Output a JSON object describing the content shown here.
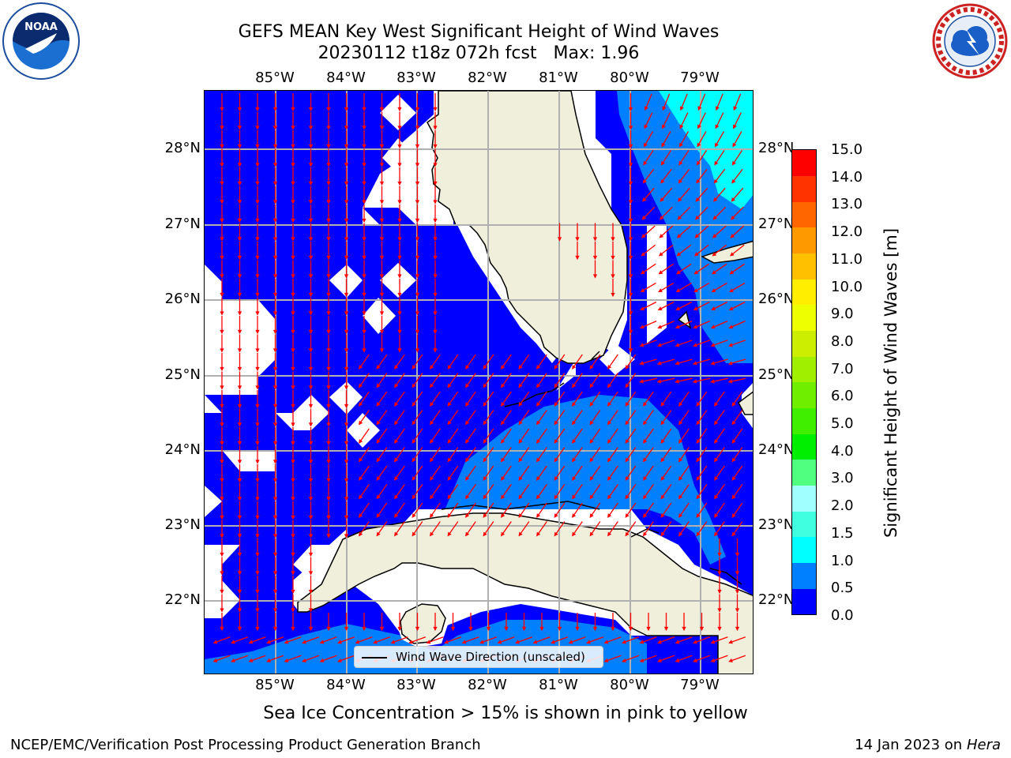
{
  "title_line1": "GEFS MEAN Key West Significant Height of Wind Waves",
  "title_run": "20230112 t18z 072h fcst",
  "title_max": "Max: 1.96",
  "lon_labels": [
    "85°W",
    "84°W",
    "83°W",
    "82°W",
    "81°W",
    "80°W",
    "79°W"
  ],
  "lat_labels": [
    "28°N",
    "27°N",
    "26°N",
    "25°N",
    "24°N",
    "23°N",
    "22°N"
  ],
  "colorbar": {
    "label": "Significant Height of Wind Waves [m]",
    "ticks": [
      "15.0",
      "14.0",
      "13.0",
      "12.0",
      "11.0",
      "10.0",
      "9.0",
      "8.0",
      "7.0",
      "6.0",
      "5.0",
      "4.0",
      "3.0",
      "2.0",
      "1.5",
      "1.0",
      "0.5",
      "0.0"
    ],
    "colors": [
      "#0000ff",
      "#0080ff",
      "#00ffff",
      "#40ffe0",
      "#a0ffff",
      "#50ff80",
      "#00ee00",
      "#40ee00",
      "#70ee00",
      "#a0ee00",
      "#ccee00",
      "#eeff00",
      "#ffee00",
      "#ffc000",
      "#ff9900",
      "#ff6600",
      "#ff3300",
      "#ff0000"
    ]
  },
  "legend_label": "Wind Wave Direction (unscaled)",
  "sea_ice_note": "Sea Ice Concentration > 15% is shown in pink to yellow",
  "footer_left": "NCEP/EMC/Verification Post Processing Product Generation Branch",
  "footer_date": "14 Jan 2023 on ",
  "footer_host": "Hera",
  "logo_left_text": "NOAA",
  "colors": {
    "sea_low": "#0000ff",
    "sea_mid": "#0080ff",
    "sea_high": "#00ffff",
    "land": "#efefdc",
    "arrow": "#ff0000",
    "grid": "#b0b0b0"
  }
}
